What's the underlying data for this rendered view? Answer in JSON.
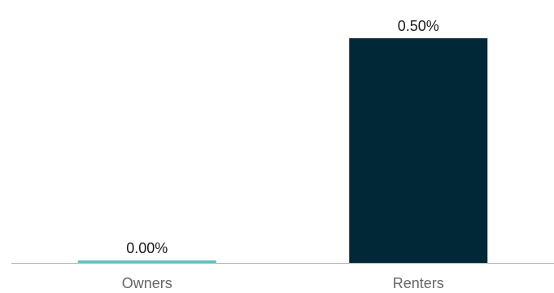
{
  "chart_data": {
    "type": "bar",
    "categories": [
      "Owners",
      "Renters"
    ],
    "values": [
      0.0,
      0.5
    ],
    "data_labels": [
      "0.00%",
      "0.50%"
    ],
    "colors": [
      "#5bc4bf",
      "#012836"
    ],
    "ylim": [
      0,
      0.5
    ],
    "grid": false,
    "axis_color": "#b3b3b3",
    "tick_label_color": "#666666",
    "data_label_color": "#1a1a1a"
  }
}
